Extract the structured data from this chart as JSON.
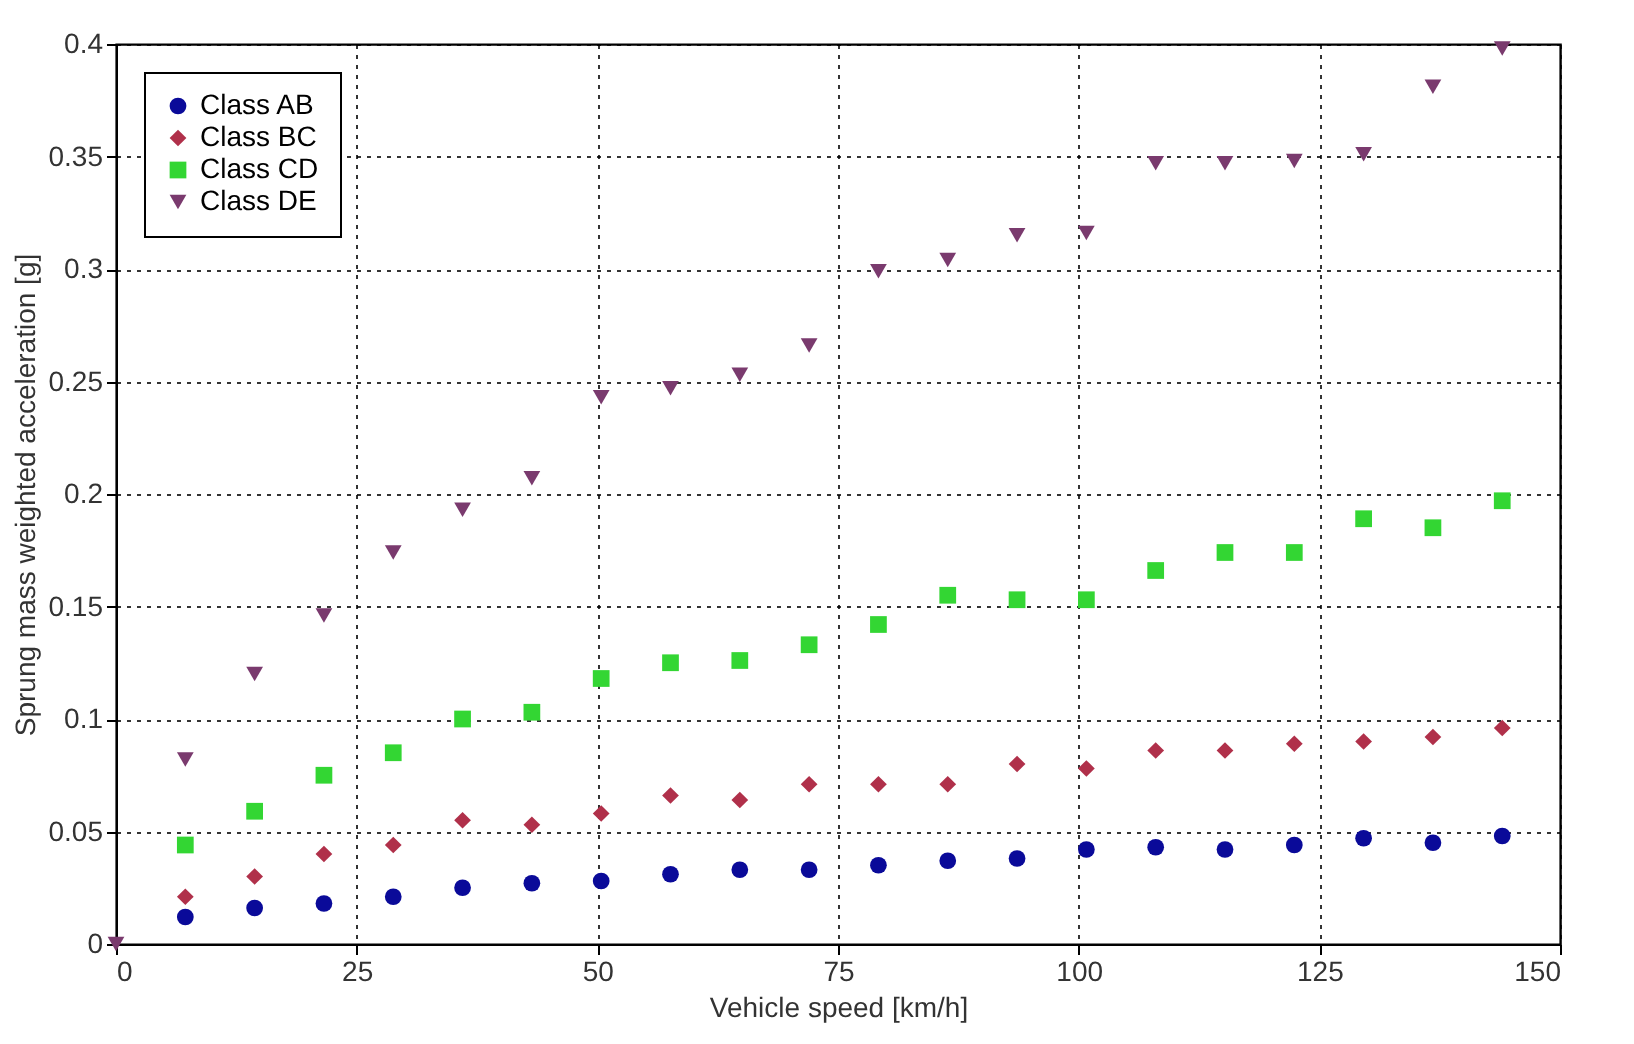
{
  "chart_data": {
    "type": "scatter",
    "xlabel": "Vehicle speed [km/h]",
    "ylabel": "Sprung mass weighted acceleration [g]",
    "x": [
      0,
      7.2,
      14.4,
      21.6,
      28.8,
      36,
      43.2,
      50.4,
      57.6,
      64.8,
      72,
      79.2,
      86.4,
      93.6,
      100.8,
      108,
      115.2,
      122.4,
      129.6,
      136.8,
      144
    ],
    "series": [
      {
        "name": "Class AB",
        "color": "#0a0a99",
        "marker": "circle",
        "values": [
          null,
          0.012,
          0.016,
          0.018,
          0.021,
          0.025,
          0.027,
          0.028,
          0.031,
          0.033,
          0.033,
          0.035,
          0.037,
          0.038,
          0.042,
          0.043,
          0.042,
          0.044,
          0.047,
          0.045,
          0.048
        ]
      },
      {
        "name": "Class BC",
        "color": "#b0304a",
        "marker": "diamond",
        "values": [
          null,
          0.021,
          0.03,
          0.04,
          0.044,
          0.055,
          0.053,
          0.058,
          0.066,
          0.064,
          0.071,
          0.071,
          0.071,
          0.08,
          0.078,
          0.086,
          0.086,
          0.089,
          0.09,
          0.092,
          0.096
        ]
      },
      {
        "name": "Class CD",
        "color": "#33d633",
        "marker": "square",
        "values": [
          null,
          0.044,
          0.059,
          0.075,
          0.085,
          0.1,
          0.103,
          0.118,
          0.125,
          0.126,
          0.133,
          0.142,
          0.155,
          0.153,
          0.153,
          0.166,
          0.174,
          0.174,
          0.189,
          0.185,
          0.197
        ]
      },
      {
        "name": "Class DE",
        "color": "#7a3a6e",
        "marker": "triangle",
        "values": [
          0,
          0.082,
          0.12,
          0.146,
          0.174,
          0.193,
          0.207,
          0.243,
          0.247,
          0.253,
          0.266,
          0.299,
          0.304,
          0.315,
          0.316,
          0.347,
          0.347,
          0.348,
          0.351,
          0.381,
          0.398
        ]
      }
    ],
    "xlim": [
      0,
      150
    ],
    "xticks": [
      0,
      25,
      50,
      75,
      100,
      125,
      150
    ],
    "ylim": [
      0,
      0.4
    ],
    "yticks": [
      0,
      0.05,
      0.1,
      0.15,
      0.2,
      0.25,
      0.3,
      0.35,
      0.4
    ],
    "grid": true,
    "legend": "top left"
  }
}
